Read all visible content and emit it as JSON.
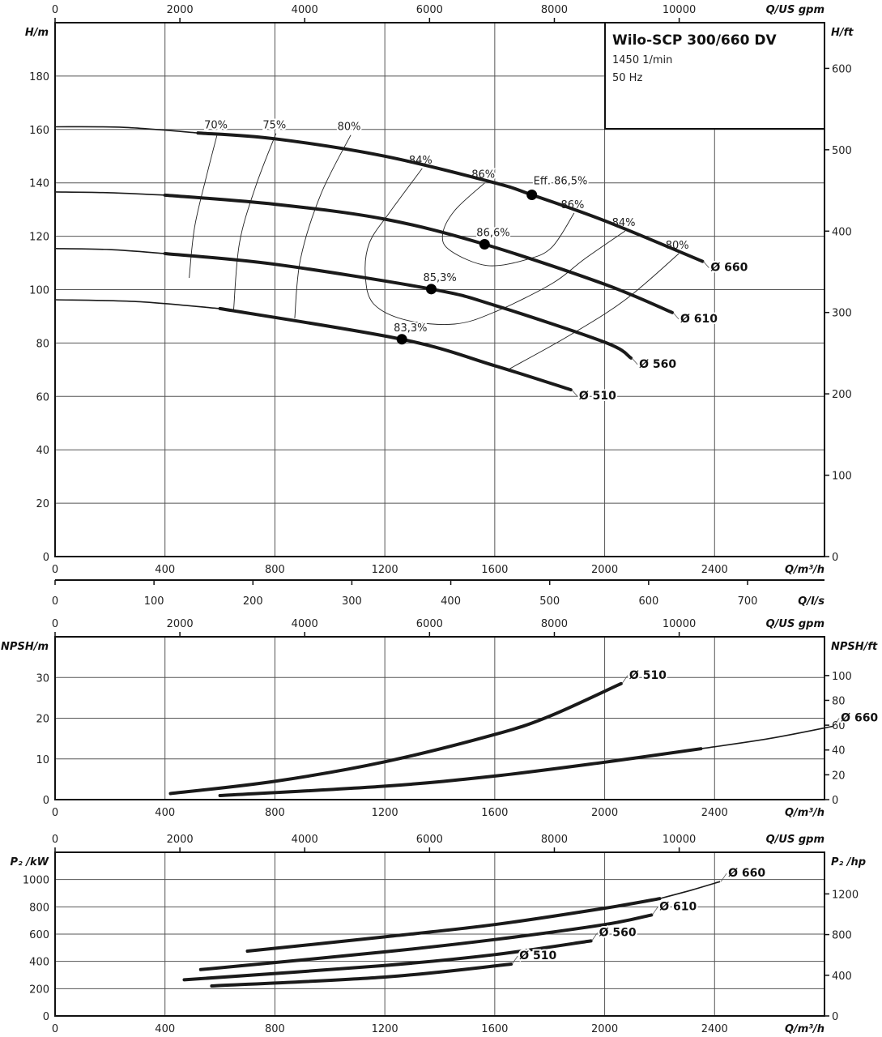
{
  "title_box": {
    "title": "Wilo-SCP 300/660 DV",
    "speed": "1450 1/min",
    "frequency": "50 Hz"
  },
  "colors": {
    "curve": "#1a1a1a",
    "grid": "#555555",
    "background": "#ffffff"
  },
  "chart_data": [
    {
      "type": "line",
      "panel": "head",
      "grid": true,
      "xlabel": "Q/m³/h",
      "xlim": [
        0,
        2800
      ],
      "xticks": [
        0,
        400,
        800,
        1200,
        1600,
        2000,
        2400
      ],
      "x2label": "Q/US gpm",
      "x2ticks": [
        0,
        2000,
        4000,
        6000,
        8000,
        10000
      ],
      "x3label": "Q/l/s",
      "x3ticks": [
        0,
        100,
        200,
        300,
        400,
        500,
        600,
        700
      ],
      "ylabel": "H/m",
      "ylim": [
        0,
        200
      ],
      "yticks": [
        0,
        20,
        40,
        60,
        80,
        100,
        120,
        140,
        160,
        180
      ],
      "y2label": "H/ft",
      "y2ticks": [
        0,
        100,
        200,
        300,
        400,
        500,
        600
      ],
      "series": [
        {
          "name": "Ø 660",
          "extension": [
            [
              0,
              161
            ],
            [
              250,
              160.8
            ],
            [
              520,
              158.7
            ]
          ],
          "points": [
            [
              520,
              158.7
            ],
            [
              800,
              156.5
            ],
            [
              1200,
              150
            ],
            [
              1600,
              140
            ],
            [
              1735,
              135.5
            ],
            [
              2000,
              125.8
            ],
            [
              2356,
              110.6
            ]
          ]
        },
        {
          "name": "Ø 610",
          "extension": [
            [
              0,
              136.6
            ],
            [
              200,
              136.3
            ],
            [
              400,
              135.4
            ]
          ],
          "points": [
            [
              400,
              135.4
            ],
            [
              800,
              132
            ],
            [
              1200,
              126.4
            ],
            [
              1563,
              117
            ],
            [
              2000,
              102
            ],
            [
              2246,
              91.4
            ]
          ]
        },
        {
          "name": "Ø 560",
          "extension": [
            [
              0,
              115.4
            ],
            [
              200,
              115
            ],
            [
              400,
              113.5
            ]
          ],
          "points": [
            [
              400,
              113.5
            ],
            [
              800,
              109.5
            ],
            [
              1369,
              100.2
            ],
            [
              1600,
              94.1
            ],
            [
              2000,
              80.3
            ],
            [
              2096,
              74.4
            ]
          ]
        },
        {
          "name": "Ø 510",
          "extension": [
            [
              0,
              96.2
            ],
            [
              300,
              95.5
            ],
            [
              600,
              92.9
            ]
          ],
          "points": [
            [
              600,
              92.9
            ],
            [
              1262,
              81.4
            ],
            [
              1600,
              71.5
            ],
            [
              1877,
              62.5
            ]
          ]
        }
      ],
      "best_efficiency_points": [
        {
          "series": "Ø 660",
          "q": 1735,
          "h": 135.5,
          "label": "Eff. 86,5%"
        },
        {
          "series": "Ø 610",
          "q": 1563,
          "h": 117,
          "label": "86,6%"
        },
        {
          "series": "Ø 560",
          "q": 1369,
          "h": 100.2,
          "label": "85,3%"
        },
        {
          "series": "Ø 510",
          "q": 1262,
          "h": 81.4,
          "label": "83,3%"
        }
      ],
      "efficiency_lines": [
        {
          "label_end": "70%",
          "points": [
            [
              488,
              104.4
            ],
            [
              508,
              123.6
            ],
            [
              553,
              143.3
            ],
            [
              591,
              158.5
            ]
          ]
        },
        {
          "label_end": "75%",
          "points": [
            [
              650,
              92.6
            ],
            [
              671,
              117.5
            ],
            [
              730,
              138.7
            ],
            [
              804,
              158.5
            ]
          ]
        },
        {
          "label_end": "80%",
          "points": [
            [
              872,
              89.3
            ],
            [
              893,
              111.4
            ],
            [
              967,
              135.7
            ],
            [
              1076,
              157.9
            ]
          ]
        },
        {
          "label_start": "84%",
          "label_end": "84%",
          "points": [
            [
              1336,
              145.4
            ],
            [
              1218,
              129
            ],
            [
              1144,
              117.5
            ],
            [
              1129,
              105.3
            ],
            [
              1159,
              94.7
            ],
            [
              1277,
              88.6
            ],
            [
              1454,
              87.1
            ],
            [
              1602,
              91.7
            ],
            [
              1809,
              102.3
            ],
            [
              1927,
              111.5
            ],
            [
              2075,
              122
            ]
          ]
        },
        {
          "label_start": "86%",
          "label_end": "86%",
          "points": [
            [
              1564,
              140
            ],
            [
              1454,
              129.6
            ],
            [
              1410,
              120.5
            ],
            [
              1440,
              114.5
            ],
            [
              1573,
              109
            ],
            [
              1720,
              111.4
            ],
            [
              1809,
              116
            ],
            [
              1889,
              128.7
            ]
          ]
        },
        {
          "label_end": "80%",
          "points": [
            [
              1655,
              70.4
            ],
            [
              1868,
              82.6
            ],
            [
              2075,
              96.2
            ],
            [
              2270,
              113.5
            ]
          ]
        }
      ]
    },
    {
      "type": "line",
      "panel": "npsh",
      "grid": true,
      "xlabel": "Q/m³/h",
      "xlim": [
        0,
        2800
      ],
      "xticks": [
        0,
        400,
        800,
        1200,
        1600,
        2000,
        2400
      ],
      "x2label": "Q/US gpm",
      "x2ticks": [
        0,
        2000,
        4000,
        6000,
        8000,
        10000
      ],
      "ylabel": "NPSH/m",
      "ylim": [
        0,
        40
      ],
      "yticks": [
        0,
        10,
        20,
        30
      ],
      "y2label": "NPSH/ft",
      "y2ticks": [
        0,
        20,
        40,
        60,
        80,
        100
      ],
      "series": [
        {
          "name": "Ø 510",
          "points": [
            [
              420,
              1.5
            ],
            [
              800,
              4.5
            ],
            [
              1200,
              9.3
            ],
            [
              1600,
              16
            ],
            [
              1800,
              20.5
            ],
            [
              2060,
              28.5
            ]
          ]
        },
        {
          "name": "Ø 660",
          "points": [
            [
              600,
              1
            ],
            [
              1200,
              3.3
            ],
            [
              1600,
              5.8
            ],
            [
              2000,
              9.2
            ],
            [
              2350,
              12.5
            ]
          ],
          "extension": [
            [
              2350,
              12.5
            ],
            [
              2600,
              15
            ],
            [
              2830,
              18
            ]
          ]
        }
      ]
    },
    {
      "type": "line",
      "panel": "power",
      "grid": true,
      "xlabel": "Q/m³/h",
      "xlim": [
        0,
        2800
      ],
      "xticks": [
        0,
        400,
        800,
        1200,
        1600,
        2000,
        2400
      ],
      "x2label": "Q/US gpm",
      "x2ticks": [
        0,
        2000,
        4000,
        6000,
        8000,
        10000
      ],
      "ylabel": "P₂ /kW",
      "ylim": [
        0,
        1200
      ],
      "yticks": [
        0,
        200,
        400,
        600,
        800,
        1000
      ],
      "y2label": "P₂ /hp",
      "y2ticks": [
        0,
        400,
        800,
        1200
      ],
      "series": [
        {
          "name": "Ø 660",
          "points": [
            [
              700,
              475
            ],
            [
              1200,
              580
            ],
            [
              1600,
              670
            ],
            [
              2000,
              790
            ],
            [
              2200,
              860
            ]
          ],
          "extension": [
            [
              2200,
              860
            ],
            [
              2320,
              925
            ],
            [
              2420,
              985
            ]
          ]
        },
        {
          "name": "Ø 610",
          "points": [
            [
              530,
              340
            ],
            [
              1200,
              470
            ],
            [
              1600,
              560
            ],
            [
              2000,
              670
            ],
            [
              2170,
              740
            ]
          ]
        },
        {
          "name": "Ø 560",
          "points": [
            [
              470,
              265
            ],
            [
              1200,
              370
            ],
            [
              1600,
              450
            ],
            [
              1950,
              550
            ]
          ]
        },
        {
          "name": "Ø 510",
          "points": [
            [
              570,
              220
            ],
            [
              1200,
              285
            ],
            [
              1660,
              380
            ]
          ]
        }
      ]
    }
  ]
}
